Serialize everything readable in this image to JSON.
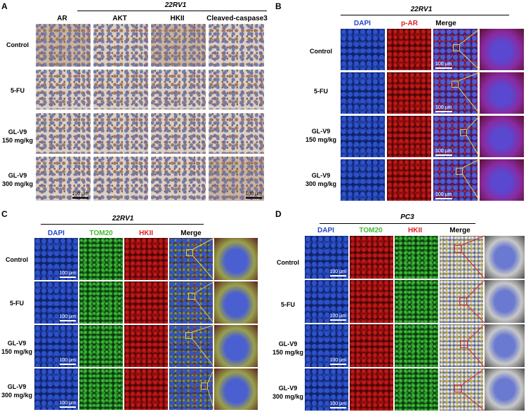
{
  "colors": {
    "dapi": "#2244cc",
    "red": "#dd2222",
    "green": "#44bb33",
    "zoom_box_yellow": "#e8c840",
    "zoom_box_red": "#dd2222"
  },
  "panel_a": {
    "letter": "A",
    "cell_line": "22RV1",
    "columns": [
      "AR",
      "AKT",
      "HKII",
      "Cleaved-caspase3"
    ],
    "rows": [
      {
        "line1": "Control",
        "line2": ""
      },
      {
        "line1": "5-FU",
        "line2": ""
      },
      {
        "line1": "GL-V9",
        "line2": "150 mg/kg"
      },
      {
        "line1": "GL-V9",
        "line2": "300 mg/kg"
      }
    ],
    "scale_bar": "100 μm"
  },
  "panel_b": {
    "letter": "B",
    "cell_line": "22RV1",
    "columns": [
      "DAPI",
      "p-AR",
      "Merge"
    ],
    "rows": [
      {
        "line1": "Control",
        "line2": ""
      },
      {
        "line1": "5-FU",
        "line2": ""
      },
      {
        "line1": "GL-V9",
        "line2": "150 mg/kg"
      },
      {
        "line1": "GL-V9",
        "line2": "300 mg/kg"
      }
    ],
    "scale_bar": "100 μm"
  },
  "panel_c": {
    "letter": "C",
    "cell_line": "22RV1",
    "columns": [
      "DAPI",
      "TOM20",
      "HKII",
      "Merge"
    ],
    "rows": [
      {
        "line1": "Control",
        "line2": ""
      },
      {
        "line1": "5-FU",
        "line2": ""
      },
      {
        "line1": "GL-V9",
        "line2": "150 mg/kg"
      },
      {
        "line1": "GL-V9",
        "line2": "300 mg/kg"
      }
    ],
    "scale_bar": "100 μm"
  },
  "panel_d": {
    "letter": "D",
    "cell_line": "PC3",
    "columns": [
      "DAPI",
      "TOM20",
      "HKII",
      "Merge"
    ],
    "rows": [
      {
        "line1": "Control",
        "line2": ""
      },
      {
        "line1": "5-FU",
        "line2": ""
      },
      {
        "line1": "GL-V9",
        "line2": "150 mg/kg"
      },
      {
        "line1": "GL-V9",
        "line2": "300 mg/kg"
      }
    ],
    "scale_bar": "100 μm"
  }
}
